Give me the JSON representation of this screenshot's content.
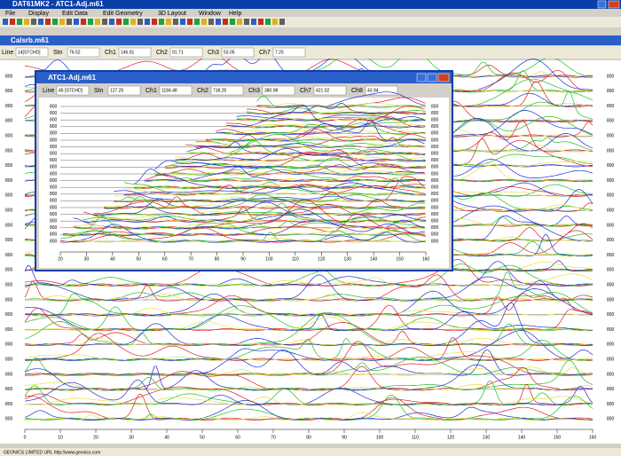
{
  "window": {
    "title": "DAT61MK2 - ATC1-Adj.m61"
  },
  "menu": [
    "File",
    "Display",
    "Edit Data",
    "Edit Geometry",
    "3D Layout",
    "Window",
    "Help"
  ],
  "child": {
    "title": "Calsrb.m61",
    "fields": [
      {
        "label": "Line",
        "value": "14[STCHD]"
      },
      {
        "label": "Stn",
        "value": "76.52"
      },
      {
        "label": "Ch1",
        "value": "146.01"
      },
      {
        "label": "Ch2",
        "value": "91.71"
      },
      {
        "label": "Ch3",
        "value": "53.05"
      },
      {
        "label": "Ch7",
        "value": "7.25"
      }
    ],
    "row_labels": [
      "800",
      "800",
      "800",
      "800",
      "800",
      "800",
      "800",
      "800",
      "800",
      "800",
      "800",
      "800",
      "800",
      "800",
      "800",
      "800",
      "800",
      "800",
      "800",
      "800",
      "800",
      "800",
      "800",
      "800"
    ],
    "x_ticks": [
      0,
      10,
      20,
      30,
      40,
      50,
      60,
      70,
      80,
      90,
      100,
      110,
      120,
      130,
      140,
      150,
      160
    ]
  },
  "popup": {
    "title": "ATC1-Adj.m61",
    "fields": [
      {
        "label": "Line",
        "value": "45 [STCHD]"
      },
      {
        "label": "Stn",
        "value": "127.25"
      },
      {
        "label": "Ch1",
        "value": "1184.48"
      },
      {
        "label": "Ch2",
        "value": "718.25"
      },
      {
        "label": "Ch3",
        "value": "380.98"
      },
      {
        "label": "Ch7",
        "value": "421.02"
      },
      {
        "label": "Ch8",
        "value": "43.94"
      }
    ],
    "row_labels": [
      "800",
      "800",
      "800",
      "800",
      "800",
      "800",
      "800",
      "800",
      "800",
      "800",
      "800",
      "800",
      "800",
      "800",
      "800",
      "800",
      "800",
      "800",
      "800",
      "800",
      "800"
    ],
    "x_ticks": [
      20,
      30,
      40,
      50,
      60,
      70,
      80,
      90,
      100,
      110,
      120,
      130,
      140,
      150,
      160
    ]
  },
  "status": "GEONICS LIMITED URL http://www.geonics.com"
}
